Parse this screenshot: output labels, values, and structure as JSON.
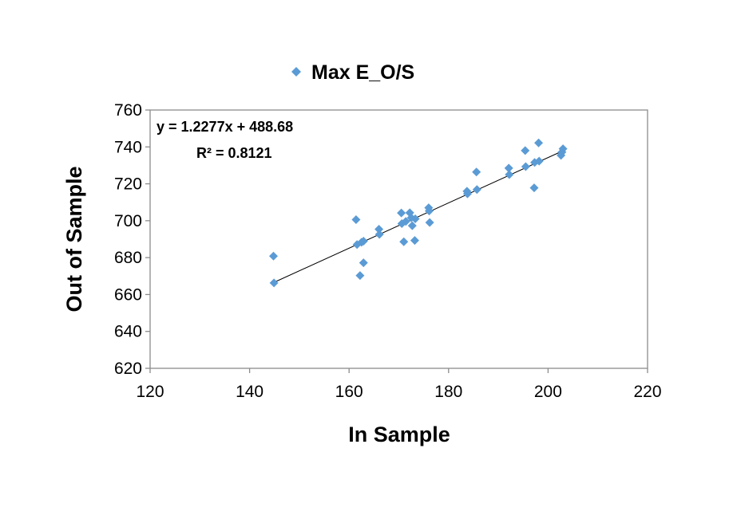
{
  "chart_data": {
    "type": "scatter",
    "xlabel": "In Sample",
    "ylabel": "Out of Sample",
    "xlim": [
      120,
      220
    ],
    "ylim": [
      620,
      760
    ],
    "xticks": [
      120,
      140,
      160,
      180,
      200,
      220
    ],
    "yticks": [
      620,
      640,
      660,
      680,
      700,
      720,
      740,
      760
    ],
    "grid": false,
    "legend_position": "top",
    "marker_color": "#5b9bd5",
    "series": [
      {
        "name": "Max E_O/S",
        "points": [
          [
            144.8,
            680.8
          ],
          [
            144.9,
            666.3
          ],
          [
            161.4,
            700.6
          ],
          [
            161.6,
            687.1
          ],
          [
            162.2,
            670.3
          ],
          [
            162.5,
            688.3
          ],
          [
            162.9,
            677.2
          ],
          [
            162.9,
            688.9
          ],
          [
            166.0,
            695.4
          ],
          [
            166.1,
            692.6
          ],
          [
            170.5,
            704.2
          ],
          [
            170.6,
            698.4
          ],
          [
            171.0,
            688.6
          ],
          [
            171.4,
            699.6
          ],
          [
            172.2,
            704.3
          ],
          [
            172.5,
            701.6
          ],
          [
            172.7,
            697.3
          ],
          [
            173.2,
            689.3
          ],
          [
            173.3,
            701.0
          ],
          [
            176.0,
            707.0
          ],
          [
            176.1,
            705.3
          ],
          [
            176.2,
            699.0
          ],
          [
            183.7,
            716.0
          ],
          [
            183.8,
            714.6
          ],
          [
            185.6,
            726.4
          ],
          [
            185.7,
            716.9
          ],
          [
            192.1,
            728.5
          ],
          [
            192.2,
            725.0
          ],
          [
            195.4,
            738.0
          ],
          [
            195.5,
            729.3
          ],
          [
            197.2,
            717.8
          ],
          [
            197.3,
            731.6
          ],
          [
            198.1,
            742.2
          ],
          [
            198.2,
            732.3
          ],
          [
            202.6,
            735.4
          ],
          [
            202.8,
            737.2
          ],
          [
            203.0,
            739.0
          ]
        ]
      }
    ],
    "trendline": {
      "slope": 1.2277,
      "intercept": 488.68,
      "x_range": [
        144.8,
        203.0
      ],
      "equation_label": "y = 1.2277x + 488.68",
      "r2_label": "R² = 0.8121"
    }
  }
}
